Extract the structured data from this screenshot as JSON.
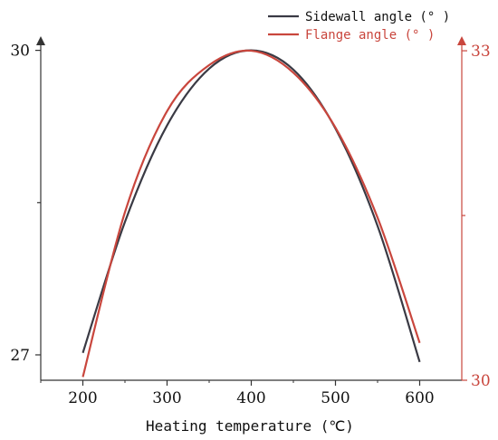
{
  "chart_data": {
    "type": "line",
    "xlabel": "Heating temperature (℃)",
    "x_ticks": [
      200,
      300,
      400,
      500,
      600
    ],
    "xlim": [
      150,
      650
    ],
    "y_left": {
      "ylim": [
        26.75,
        30.05
      ],
      "ticks": [
        27,
        28.5,
        30
      ],
      "tick_labels": [
        "27",
        "",
        "30"
      ],
      "color": "#333333"
    },
    "y_right": {
      "ylim": [
        30,
        33.05
      ],
      "ticks": [
        30,
        31.5,
        33
      ],
      "tick_labels": [
        "30",
        "",
        "33"
      ],
      "color": "#c9463d"
    },
    "legend_position": "top-right",
    "series": [
      {
        "name": "Sidewall angle (° )",
        "axis": "left",
        "color": "#3a3a44",
        "x": [
          200,
          250,
          300,
          350,
          400,
          450,
          500,
          550,
          600
        ],
        "y": [
          27.02,
          28.31,
          29.26,
          29.82,
          30.0,
          29.81,
          29.23,
          28.27,
          26.93
        ]
      },
      {
        "name": "Flange angle   (° )",
        "axis": "right",
        "color": "#c9463d",
        "x": [
          200,
          250,
          300,
          350,
          400,
          450,
          500,
          550,
          600
        ],
        "y": [
          30.03,
          31.53,
          32.45,
          32.87,
          33.0,
          32.8,
          32.3,
          31.48,
          30.34
        ]
      }
    ]
  }
}
